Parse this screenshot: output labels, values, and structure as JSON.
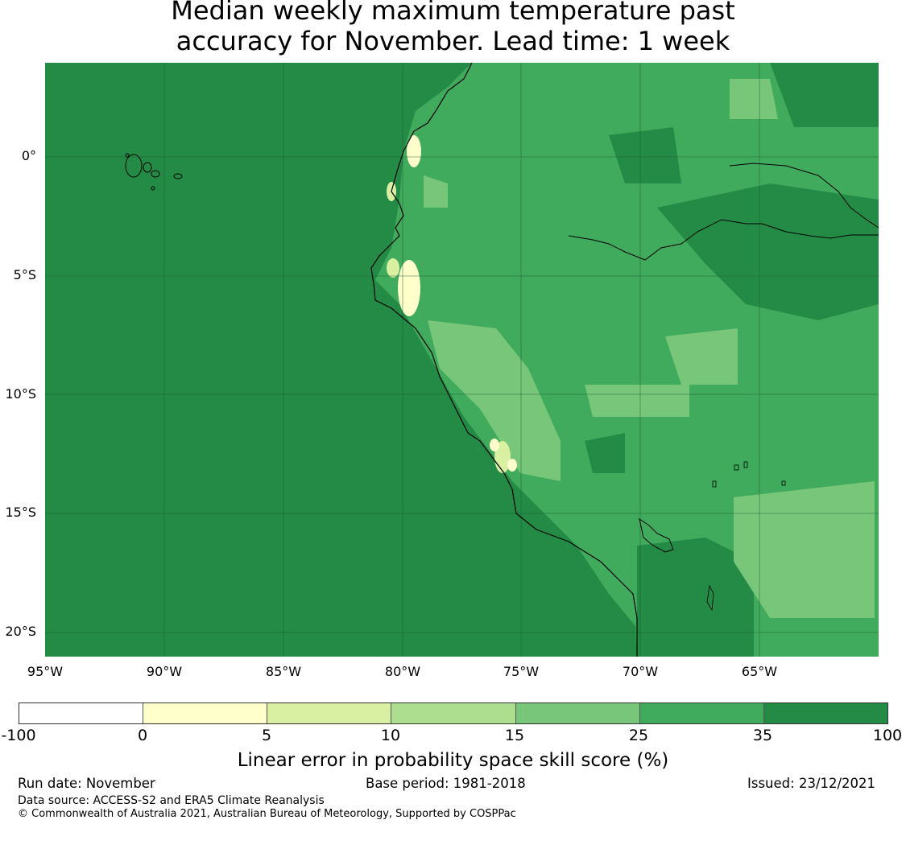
{
  "title_line1": "Median weekly maximum temperature past",
  "title_line2": "accuracy for November. Lead time: 1 week",
  "map": {
    "lat_labels": [
      "0°",
      "5°S",
      "10°S",
      "15°S",
      "20°S"
    ],
    "lon_labels": [
      "95°W",
      "90°W",
      "85°W",
      "80°W",
      "75°W",
      "70°W",
      "65°W"
    ],
    "ocean_color": "#238b45"
  },
  "colorbar": {
    "colors": [
      "#ffffff",
      "#ffffcc",
      "#d9f0a3",
      "#addd8e",
      "#78c679",
      "#41ab5d",
      "#238b45"
    ],
    "tick_labels": [
      "-100",
      "0",
      "5",
      "10",
      "15",
      "25",
      "35",
      "100"
    ],
    "title": "Linear error in probability space skill score (%)"
  },
  "footer": {
    "run_date": "Run date: November",
    "base_period": "Base period: 1981-2018",
    "issued": "Issued: 23/12/2021",
    "source": "Data source: ACCESS-S2 and ERA5 Climate Reanalysis",
    "copyright": "© Commonwealth of Australia 2021, Australian Bureau of Meteorology, Supported by COSPPac"
  }
}
